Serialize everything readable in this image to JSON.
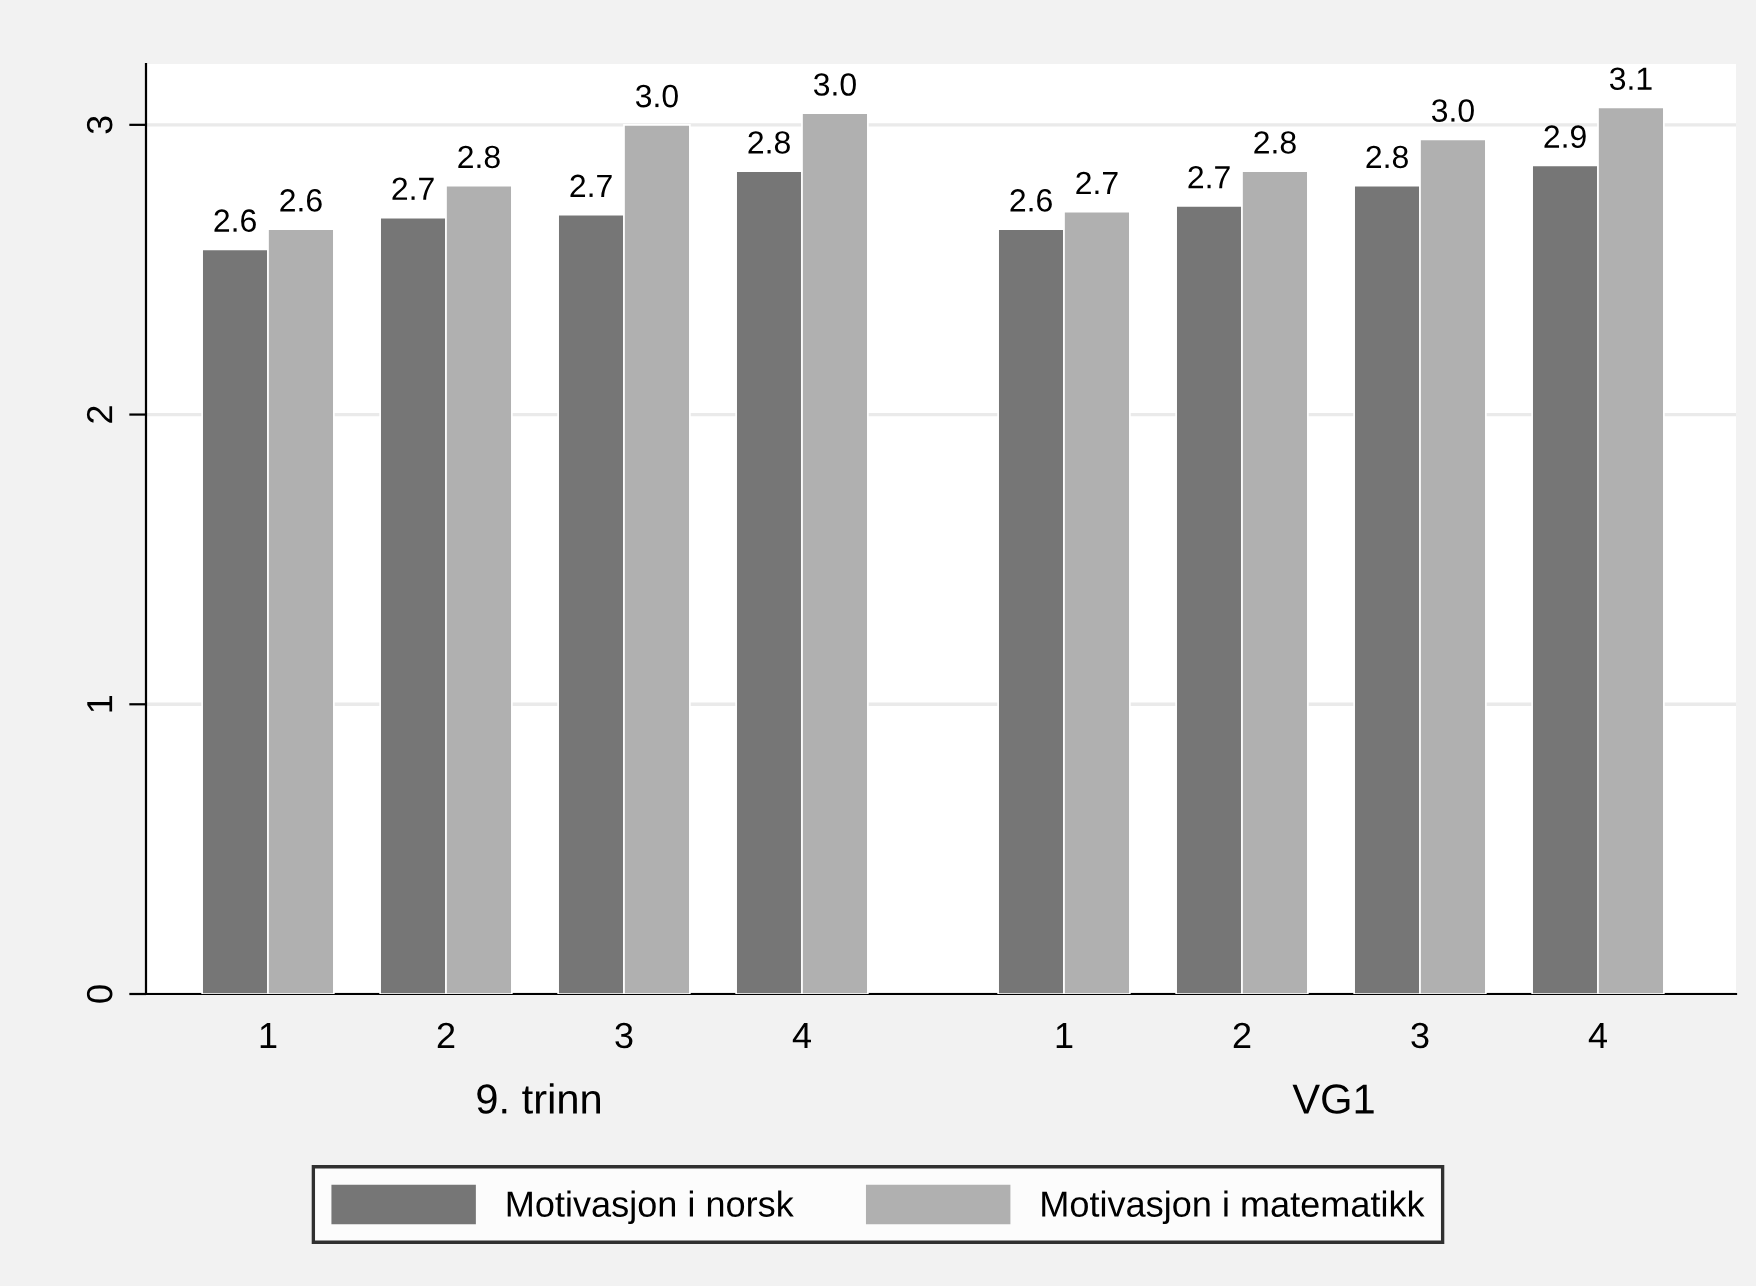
{
  "chart_data": [
    {
      "type": "bar",
      "xlabel": "9. trinn",
      "categories": [
        "1",
        "2",
        "3",
        "4"
      ],
      "ylim": [
        0,
        3.21
      ],
      "yticks": [
        0,
        1,
        2,
        3
      ],
      "grid": "y",
      "legend": "bottom",
      "series": [
        {
          "name": "Motivasjon i norsk",
          "color": "#767676",
          "values": [
            2.57,
            2.68,
            2.69,
            2.84
          ],
          "value_labels": [
            "2.6",
            "2.7",
            "2.7",
            "2.8"
          ]
        },
        {
          "name": "Motivasjon i matematikk",
          "color": "#b0b0b0",
          "values": [
            2.64,
            2.79,
            3.0,
            3.04
          ],
          "value_labels": [
            "2.6",
            "2.8",
            "3.0",
            "3.0"
          ]
        }
      ]
    },
    {
      "type": "bar",
      "xlabel": "VG1",
      "categories": [
        "1",
        "2",
        "3",
        "4"
      ],
      "ylim": [
        0,
        3.21
      ],
      "yticks": [
        0,
        1,
        2,
        3
      ],
      "grid": "y",
      "tick_labels": "x",
      "series": [
        {
          "color": "#767676",
          "values": [
            2.64,
            2.72,
            2.79,
            2.86
          ],
          "value_labels": [
            "2.6",
            "2.7",
            "2.8",
            "2.9"
          ]
        },
        {
          "color": "#b0b0b0",
          "values": [
            2.7,
            2.84,
            2.95,
            3.06
          ],
          "value_labels": [
            "2.7",
            "2.8",
            "3.0",
            "3.1"
          ]
        }
      ]
    }
  ]
}
